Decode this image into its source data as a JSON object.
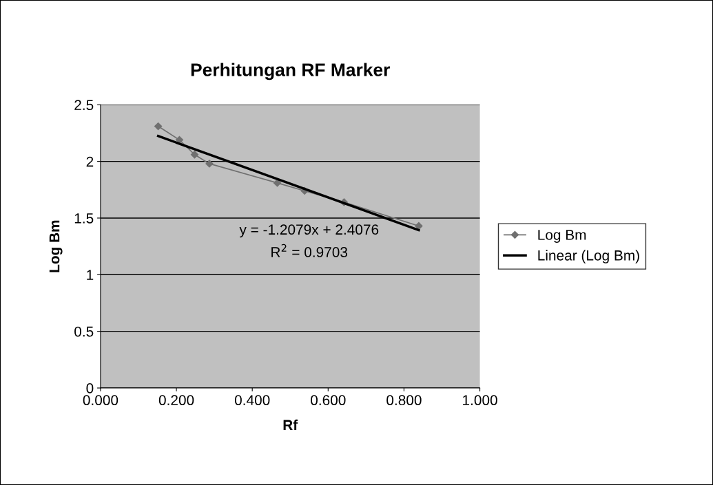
{
  "chart_data": {
    "type": "line",
    "title": "Perhitungan RF Marker",
    "xlabel": "Rf",
    "ylabel": "Log Bm",
    "series": [
      {
        "name": "Log Bm",
        "color": "#707070",
        "marker": "diamond",
        "x": [
          0.152,
          0.208,
          0.248,
          0.287,
          0.466,
          0.538,
          0.642,
          0.839
        ],
        "values": [
          2.31,
          2.19,
          2.06,
          1.98,
          1.81,
          1.74,
          1.64,
          1.43
        ]
      },
      {
        "name": "Linear (Log Bm)",
        "color": "#000000",
        "marker": "none",
        "x": [
          0.152,
          0.839
        ],
        "values": [
          2.224,
          1.394
        ]
      }
    ],
    "annotations": [
      "y = -1.2079x + 2.4076",
      "R$^{2}$ = 0.9703"
    ],
    "xlim": [
      0,
      1
    ],
    "ylim": [
      0,
      2.5
    ],
    "xticks": [
      {
        "value": 0,
        "label": "0.000"
      },
      {
        "value": 0.2,
        "label": "0.200"
      },
      {
        "value": 0.4,
        "label": "0.400"
      },
      {
        "value": 0.6,
        "label": "0.600"
      },
      {
        "value": 0.8,
        "label": "0.800"
      },
      {
        "value": 1,
        "label": "1.000"
      }
    ],
    "yticks": [
      0,
      0.5,
      1,
      1.5,
      2,
      2.5
    ],
    "grid": "y",
    "legend": "right"
  }
}
